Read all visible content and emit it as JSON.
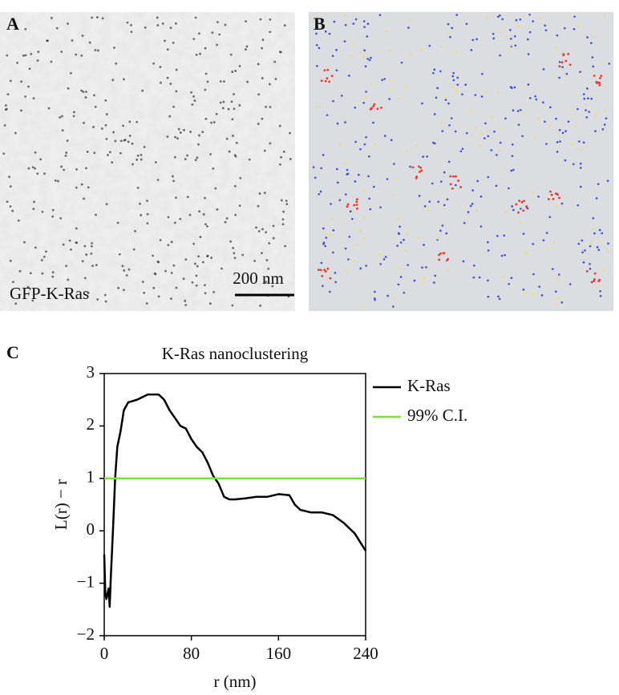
{
  "panels": {
    "A": {
      "label": "A",
      "caption": "GFP-K-Ras",
      "scale_bar": "200 nm"
    },
    "B": {
      "label": "B"
    },
    "C": {
      "label": "C"
    }
  },
  "chart_data": {
    "type": "line",
    "title": "K-Ras nanoclustering",
    "x_label": "r (nm)",
    "y_label": "L(r) − r",
    "xlim": [
      0,
      240
    ],
    "ylim": [
      -2,
      3
    ],
    "xticks": [
      0,
      80,
      160,
      240
    ],
    "yticks": [
      {
        "value": -2,
        "label": "−2"
      },
      {
        "value": -1,
        "label": "−1"
      },
      0,
      1,
      2,
      3
    ],
    "legend": "right",
    "series": [
      {
        "name": "K-Ras",
        "color": "#000000",
        "x": [
          0,
          1,
          2,
          4,
          5,
          6,
          8,
          10,
          12,
          15,
          18,
          22,
          30,
          40,
          50,
          55,
          60,
          65,
          70,
          75,
          80,
          85,
          90,
          95,
          100,
          105,
          110,
          115,
          120,
          130,
          140,
          150,
          160,
          170,
          175,
          180,
          190,
          200,
          210,
          220,
          230,
          240
        ],
        "values": [
          -0.45,
          -1.2,
          -1.3,
          -1.1,
          -1.45,
          -0.9,
          0,
          1.0,
          1.6,
          1.9,
          2.3,
          2.45,
          2.5,
          2.6,
          2.6,
          2.5,
          2.3,
          2.15,
          2.0,
          1.95,
          1.75,
          1.6,
          1.5,
          1.3,
          1.05,
          0.9,
          0.65,
          0.6,
          0.6,
          0.62,
          0.65,
          0.65,
          0.7,
          0.68,
          0.5,
          0.4,
          0.35,
          0.35,
          0.3,
          0.15,
          -0.05,
          -0.38
        ]
      },
      {
        "name": "99% C.I.",
        "color": "#7ee03c",
        "x": [
          0,
          240
        ],
        "values": [
          1,
          1
        ]
      }
    ]
  }
}
